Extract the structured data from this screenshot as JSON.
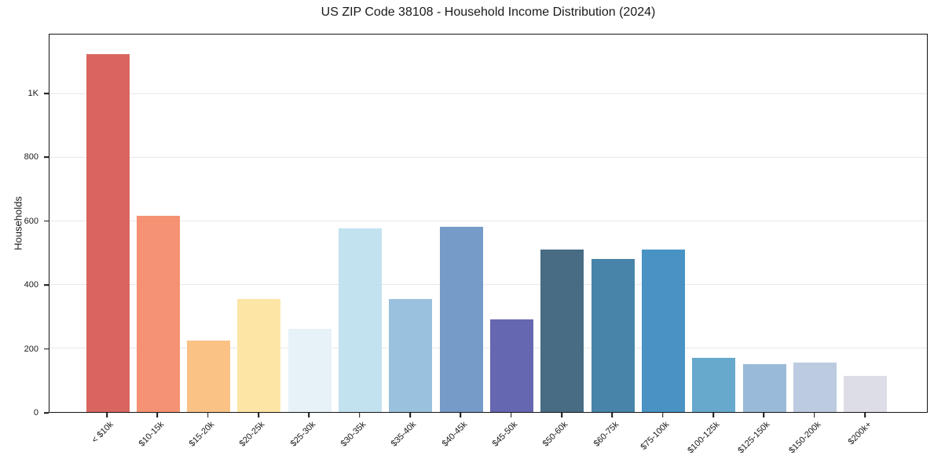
{
  "chart_data": {
    "type": "bar",
    "title": "US ZIP Code 38108 - Household Income Distribution (2024)",
    "xlabel": "",
    "ylabel": "Households",
    "categories": [
      "< $10k",
      "$10-15k",
      "$15-20k",
      "$20-25k",
      "$25-30k",
      "$30-35k",
      "$35-40k",
      "$40-45k",
      "$45-50k",
      "$50-60k",
      "$60-75k",
      "$75-100k",
      "$100-125k",
      "$125-150k",
      "$150-200k",
      "$200k+"
    ],
    "values": [
      1126,
      616,
      225,
      356,
      261,
      577,
      356,
      582,
      292,
      510,
      481,
      510,
      170,
      150,
      156,
      113
    ],
    "bar_colors": [
      "#d65a52",
      "#f48a68",
      "#fbbd7d",
      "#fde49e",
      "#e4f1f8",
      "#bee0ee",
      "#92bcda",
      "#6b93c4",
      "#5a5bab",
      "#3a617b",
      "#3a7ba3",
      "#3a8bc0",
      "#5ba3c9",
      "#92b5d6",
      "#b7c7dd",
      "#d9dae5"
    ],
    "ylim": [
      0,
      1187
    ],
    "yticks": [
      {
        "value": 0,
        "label": "0"
      },
      {
        "value": 200,
        "label": "200"
      },
      {
        "value": 400,
        "label": "400"
      },
      {
        "value": 600,
        "label": "600"
      },
      {
        "value": 800,
        "label": "800"
      },
      {
        "value": 1000,
        "label": "1K"
      }
    ],
    "grid": true,
    "grid_color": "#e8e8e8",
    "axis_color": "#141414",
    "legend": "none",
    "x_tick_rotation_deg": 45
  }
}
